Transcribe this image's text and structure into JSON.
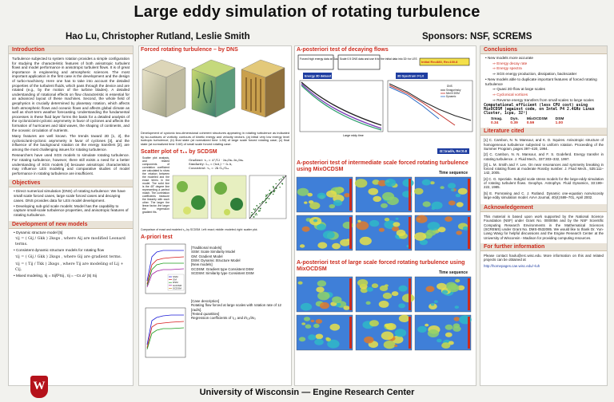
{
  "title": "Large eddy simulation of rotating turbulence",
  "authors": "Hao Lu, Christopher Rutland, Leslie Smith",
  "sponsors": "Sponsors: NSF, SCREMS",
  "footer": "University of Wisconsin  —  Engine Research Center",
  "logo_letter": "W",
  "intro": {
    "heading": "Introduction",
    "p1": "Turbulence subjected to system rotation provides a simple configuration for studying the characteristic features of both anisotropic turbulent flows and model performance in anisotropic turbulent flows. It is of great importance in engineering and atmospheric sciences. The most important application in the first case is the development and the design of turbo-machinery. Here one has to take into account the detailed properties of the turbulent fluids, which pass through the device and are rotated (e.g., by the motion of the turbine blades). A detailed understanding of rotational effects on flow characteristic is essential for an advanced layout of these machines. Second, the whole field of geophysics is crucially determined by planetary rotation, which affects both atmospheric flows and oceanic flows and affects global climate as well as short-term weather forecasting. Understanding the fundamental processes in these fluid layer forms the basis for a detailed analysis of the cyclonic/anti-cyclonic asymmetry in favor of cyclones and affects the formation of hurricanes and tidal waves, the shaping of continents, and the oceanic circulation of nutrients.",
    "p2": "Many features are well known. The trends toward 2D [1, 2], the cyclonic/anti-cyclonic asymmetry in favor of cyclones [3], and the influence of the background rotation on the energy transfers [2], are among the most challenging issues for rotating turbulence.",
    "p3": "Researchers have used SGS models to simulate rotating turbulence. For rotating turbulence, however, there still exists a need for a better understanding of SGS models [4] because anisotropic characteristics may influence LES modeling and comparative studies of model performance in rotating turbulence are insufficient."
  },
  "objectives": {
    "heading": "Objectives",
    "items": [
      "Direct numerical simulation (DNS) of rotating turbulence: We have small scale forced cases, large scale forced cases and decaying cases. DNS provides data for LES model development.",
      "Developing sub-grid scale models: Model has the capability to capture small-scale turbulence properties, and anisotropic features of rotating turbulence."
    ]
  },
  "development": {
    "heading": "Development of new models",
    "items": [
      "Dynamic structure model [5]",
      "Consistent dynamic structure models for rotating flow",
      "Mixed modeling,"
    ],
    "eq1": "τij = ( Gij / Gkk ) 2ksgs ,  where Aij are modified Leonard terms.",
    "eq2": "τij = ( Gij / Gkk ) 2ksgs ,  where Gij are gradient terms.",
    "eq3": "τij = ( Tij / Tkk ) 2ksgs ,  where Tij are modeling of Lij + Cij.",
    "eq4": "τij = Sij∇²Sij ,  τij = −Cs Δ² |S| Sij"
  },
  "forced": {
    "heading": "Forced rotating turbulence – by DNS",
    "caption": "Development of cyclonic two-dimensional coherent structures appearing in rotating turbulence as indicated by iso-surfaces of vorticity, contours of kinetic energy and velocity vectors. (a) initial very low energy level isotropic turbulence; (b) final state (at normalized time 1.86) of large scale forced rotating case; (c) final state (at normalized time 3.60) of small scale forced rotating case."
  },
  "scatter": {
    "heading": "Scatter plot of τ₁₃ by SCDSM",
    "side_caption": "Scatter plot analysis, and related components of correlation coefficient are calculated to show the relation between the modeled and the exact terms in the model. The solid line is the 45° degree line representing a perfect match. The correlation coefficients measure the linearity with each other. The larger the linear factor, the larger the regression gradient fits.",
    "eq_a": "Gradient: τᵢⱼ = Δ²/12 · ∂uᵢ/∂xₖ ∂uⱼ/∂xₖ",
    "eq_b": "Similarity: Lᵢⱼ = (ūᵢūⱼ) − ūᵢ ūⱼ",
    "eq_c": "Consistent: τᵢⱼ = 2k Gᵢⱼ/Gₖₖ",
    "caption": "Comparison of exact and modeled τ₁₃ by SCDSM. Left: exact; middle: modeled; right: scatter plot."
  },
  "apriori": {
    "heading": "A-priori test",
    "models_title": "[Traditional models]",
    "models": [
      "SSM: Scale Similarity Model",
      "GM:  Gradient Model",
      "DSM: Dynamic Structure Model"
    ],
    "new_title": "[New models]",
    "new_models": [
      "GCDSM: Gradient type Consistent DSM",
      "SCDSM: Similarity type Consistent DSM"
    ],
    "case_title": "[Case description]",
    "case_text": "Rotating flow forced at large scales with rotation rate of 12 [rad/s].",
    "tested_title": "[Tested quantities]",
    "tested_text": "Regression coefficients of τ₁₃ and ∂τ₁₃/∂x₃",
    "legend": [
      "SSM",
      "GM",
      "DSM",
      "GCDSM",
      "SCDSM"
    ]
  },
  "posteriori1": {
    "heading": "A-posteriori test of decaying flows",
    "box1": "Forced high energy data at Gaussian white-noise scheme",
    "box2": "Scale 0.5 DNS data and use it for the initial data into 32³ for LES",
    "box3": "Initial Re=880, Re=100.8",
    "label_energy": "Energy 3D dataset",
    "label_spectrum": "3D Spectrum t=1.0",
    "label_bottom": "Ω=1rad/s, Re=0.8",
    "xlabel_left": "Large eddy time",
    "dns": "DNS",
    "series": [
      "Smagorinsky",
      "MixOCDSM",
      "Dynamic"
    ]
  },
  "posteriori2": {
    "heading": "A-posteriori test of intermediate scale forced rotating turbulence using MixOCDSM",
    "time_label": "Time sequence"
  },
  "posteriori3": {
    "heading": "A-posteriori test of large scale forced rotating turbulence using MixOCDSM",
    "time_label": "Time sequence"
  },
  "conclusions": {
    "heading": "Conclusions",
    "items": [
      "New models more accurate",
      "Energy decay rate",
      "Energy spectra",
      "SGS energy production, dissipation, backscatter",
      "New models able to duplicate important features of forced rotating turbulence",
      "Quasi 2D flow at large scales",
      "Cyclonical vortices",
      "Reverse energy transfers from small scales to large scales"
    ],
    "cost_title": "Computational efficient (less CPU cost) using MixOCDSM (against code, on Intel P4 2.4GHz Linux Cluster, 1cpu, 32³)",
    "cost_header": [
      "Smag.",
      "Dyn.",
      "MixOCDSM",
      "DSM"
    ],
    "cost_values": [
      "0.34",
      "0.39",
      "0.59",
      "1.00"
    ]
  },
  "literature": {
    "heading": "Literature cited",
    "refs": [
      "[1] C. Cambon, N. N. Mansour, and K. D. Squires. Anisotropic structure of homogeneous turbulence subjected to uniform rotation. Proceeding of the Summer Program, pages 397–420, 1994.",
      "[2] C. Cambon, N. N. Mansour, and F. S. Godeferd. Energy transfer in rotating turbulence. J. Fluid Mech., 337:303–332, 1997.",
      "[3] L. M. Smith and Y. Lee. On near resonances and symmetry breaking in forced rotating flows at moderate Rossby number. J. Fluid Mech., 535:111–142, 2005.",
      "[4] C. G. Speziale. Subgrid scale stress models for the large-eddy simulation of rotating turbulent flows. Geophys. Astrophys. Fluid Dynamics, 33:199–222, 1985.",
      "[5] E. Pomraning and C. J. Rutland. Dynamic one-equation nonviscosity large eddy simulation model. AIAA Journal, 40(4):689–701, April 2002."
    ]
  },
  "ack": {
    "heading": "Acknowledgement",
    "text": "This material is based upon work supported by the National Science Foundation (NSF) under Grant No. 0000056 and by the NSF Scientific Computing Research Environments in the Mathematical Sciences (SCREMS) under Grant No. DMS-0532085. We would like to thank Dr. Yun-Liang Wang for helpful discussions and the Engine Research Center at the University of Wisconsin - Madison for providing computing resources."
  },
  "further": {
    "heading": "For further information",
    "text": "Please contact haolu@erc.wisc.edu. More information on this and related projects can be obtained at",
    "link": "http://homepages.cae.wisc.edu/~luh"
  },
  "colors": {
    "accent": "#cc2b1d",
    "blue": "#1e3da0",
    "panel": "#e9e3d8"
  }
}
